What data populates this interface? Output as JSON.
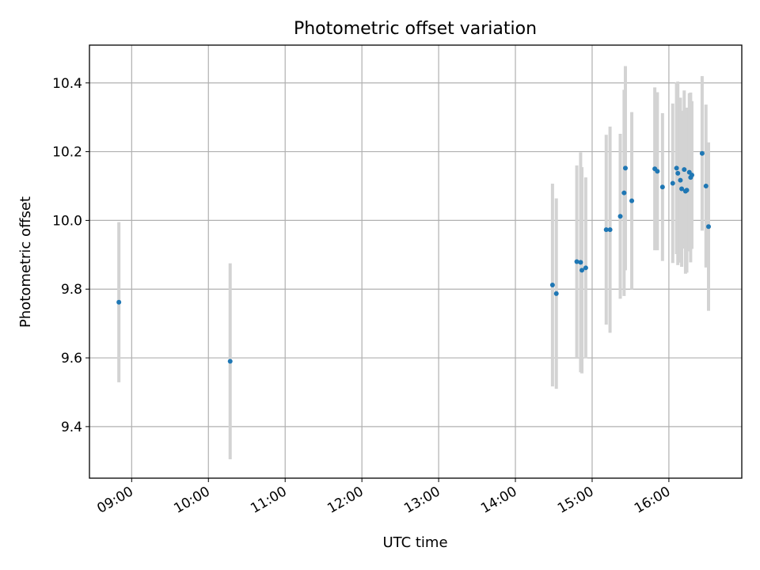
{
  "chart_data": {
    "type": "scatter",
    "title": "Photometric offset variation",
    "xlabel": "UTC time",
    "ylabel": "Photometric offset",
    "x_ticks": [
      "09:00",
      "10:00",
      "11:00",
      "12:00",
      "13:00",
      "14:00",
      "15:00",
      "16:00"
    ],
    "y_ticks": [
      "9.4",
      "9.6",
      "9.8",
      "10.0",
      "10.2",
      "10.4"
    ],
    "xlim": [
      "08:27",
      "16:57"
    ],
    "ylim": [
      9.25,
      10.51
    ],
    "grid": true,
    "marker_color": "#1f77b4",
    "errorbar_color": "#d3d3d3",
    "points": [
      {
        "t": "08:50",
        "y": 9.762,
        "err": 0.233
      },
      {
        "t": "10:17",
        "y": 9.59,
        "err": 0.285
      },
      {
        "t": "14:29",
        "y": 9.812,
        "err": 0.295
      },
      {
        "t": "14:32",
        "y": 9.787,
        "err": 0.277
      },
      {
        "t": "14:48",
        "y": 9.88,
        "err": 0.28
      },
      {
        "t": "14:51",
        "y": 9.878,
        "err": 0.32
      },
      {
        "t": "14:52",
        "y": 9.855,
        "err": 0.3
      },
      {
        "t": "14:55",
        "y": 9.862,
        "err": 0.263
      },
      {
        "t": "15:11",
        "y": 9.973,
        "err": 0.276
      },
      {
        "t": "15:14",
        "y": 9.973,
        "err": 0.3
      },
      {
        "t": "15:22",
        "y": 10.012,
        "err": 0.24
      },
      {
        "t": "15:25",
        "y": 10.08,
        "err": 0.3
      },
      {
        "t": "15:26",
        "y": 10.152,
        "err": 0.297
      },
      {
        "t": "15:31",
        "y": 10.057,
        "err": 0.258
      },
      {
        "t": "15:49",
        "y": 10.15,
        "err": 0.237
      },
      {
        "t": "15:51",
        "y": 10.143,
        "err": 0.23
      },
      {
        "t": "15:55",
        "y": 10.097,
        "err": 0.215
      },
      {
        "t": "16:03",
        "y": 10.108,
        "err": 0.232
      },
      {
        "t": "16:06",
        "y": 10.152,
        "err": 0.25
      },
      {
        "t": "16:07",
        "y": 10.137,
        "err": 0.267
      },
      {
        "t": "16:09",
        "y": 10.117,
        "err": 0.24
      },
      {
        "t": "16:10",
        "y": 10.092,
        "err": 0.227
      },
      {
        "t": "16:12",
        "y": 10.148,
        "err": 0.23
      },
      {
        "t": "16:13",
        "y": 10.085,
        "err": 0.24
      },
      {
        "t": "16:14",
        "y": 10.088,
        "err": 0.24
      },
      {
        "t": "16:16",
        "y": 10.14,
        "err": 0.23
      },
      {
        "t": "16:17",
        "y": 10.125,
        "err": 0.247
      },
      {
        "t": "16:18",
        "y": 10.132,
        "err": 0.215
      },
      {
        "t": "16:26",
        "y": 10.195,
        "err": 0.225
      },
      {
        "t": "16:29",
        "y": 10.1,
        "err": 0.237
      },
      {
        "t": "16:31",
        "y": 9.982,
        "err": 0.245
      }
    ]
  }
}
